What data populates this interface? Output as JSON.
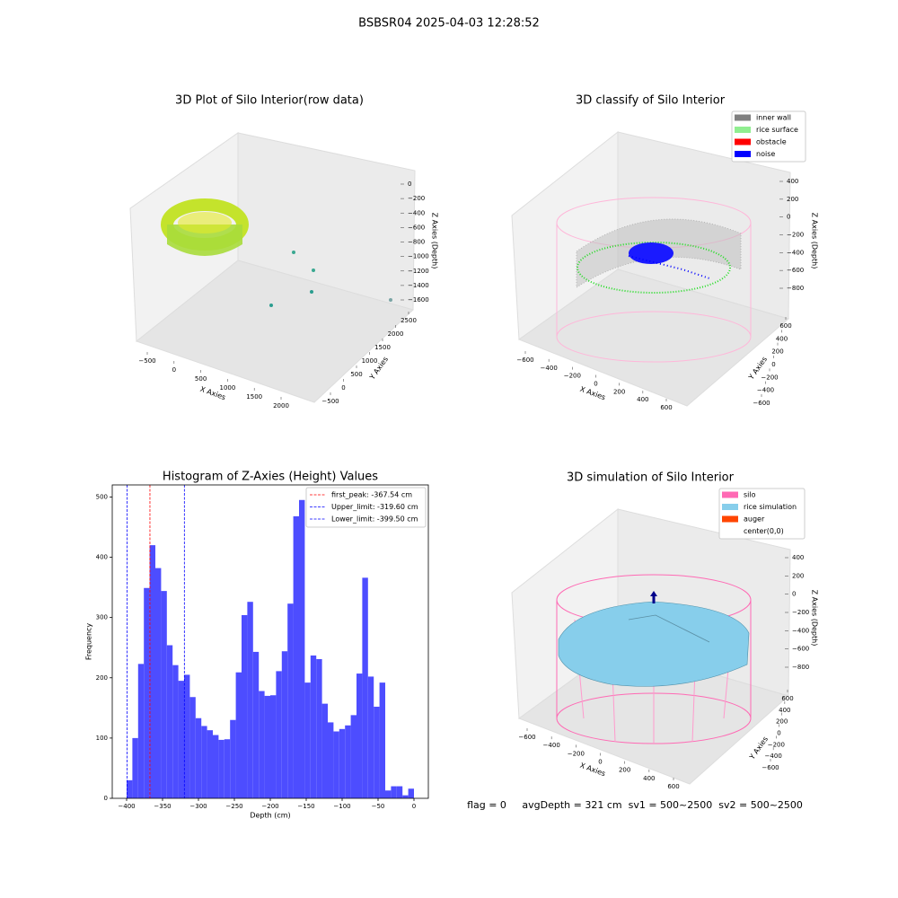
{
  "title": "BSBSR04 2025-04-03 12:28:52",
  "footer": "flag = 0     avgDepth = 321 cm  sv1 = 500~2500  sv2 = 500~2500",
  "chart_data": [
    {
      "type": "scatter3d",
      "title": "3D Plot of Silo Interior(row data)",
      "xlabel": "X Axies",
      "ylabel": "Y Axies",
      "zlabel": "Z Axies (Depth)",
      "xticks": [
        {
          "value": -500,
          "label": "−500"
        },
        0,
        500,
        1000,
        1500,
        2000
      ],
      "yticks": [
        {
          "value": -500,
          "label": "−500"
        },
        0,
        500,
        1000,
        1500,
        2000,
        2500
      ],
      "zticks": [
        0,
        {
          "value": -200,
          "label": "−200"
        },
        {
          "value": -400,
          "label": "−400"
        },
        {
          "value": -600,
          "label": "−600"
        },
        {
          "value": -800,
          "label": "−800"
        },
        {
          "value": -1000,
          "label": "−1000"
        },
        {
          "value": -1200,
          "label": "−1200"
        },
        {
          "value": -1400,
          "label": "−1400"
        },
        {
          "value": -1600,
          "label": "−1600"
        }
      ]
    },
    {
      "type": "scatter3d",
      "title": "3D classify of Silo Interior",
      "xlabel": "X Axies",
      "ylabel": "Y Axies",
      "zlabel": "Z Axies (Depth)",
      "xticks": [
        {
          "value": -600,
          "label": "−600"
        },
        {
          "value": -400,
          "label": "−400"
        },
        {
          "value": -200,
          "label": "−200"
        },
        0,
        200,
        400,
        600
      ],
      "yticks": [
        {
          "value": -600,
          "label": "−600"
        },
        {
          "value": -400,
          "label": "−400"
        },
        {
          "value": -200,
          "label": "−200"
        },
        0,
        200,
        400,
        600
      ],
      "zticks": [
        400,
        200,
        0,
        {
          "value": -200,
          "label": "−200"
        },
        {
          "value": -400,
          "label": "−400"
        },
        {
          "value": -600,
          "label": "−600"
        },
        {
          "value": -800,
          "label": "−800"
        }
      ],
      "legend": [
        {
          "name": "inner wall",
          "color": "#808080"
        },
        {
          "name": "rice surface",
          "color": "#90ee90"
        },
        {
          "name": "obstacle",
          "color": "#ff0000"
        },
        {
          "name": "noise",
          "color": "#0000ff"
        }
      ]
    },
    {
      "type": "histogram",
      "title": "Histogram of Z-Axies (Height) Values",
      "xlabel": "Depth (cm)",
      "ylabel": "Frequency",
      "color": "#4d4dff",
      "bins": [
        -400,
        -392,
        -384,
        -376,
        -368,
        -360,
        -352,
        -344,
        -336,
        -328,
        -320,
        -312,
        -304,
        -296,
        -288,
        -280,
        -272,
        -264,
        -256,
        -248,
        -240,
        -232,
        -224,
        -216,
        -208,
        -200,
        -192,
        -184,
        -176,
        -168,
        -160,
        -152,
        -144,
        -136,
        -128,
        -120,
        -112,
        -104,
        -96,
        -88,
        -80,
        -72,
        -64,
        -56,
        -48,
        -40,
        -32,
        -24,
        -16,
        -8,
        0
      ],
      "values": [
        30,
        100,
        223,
        349,
        420,
        382,
        344,
        254,
        221,
        195,
        205,
        168,
        133,
        120,
        113,
        105,
        97,
        98,
        130,
        209,
        304,
        326,
        243,
        178,
        170,
        171,
        211,
        244,
        323,
        468,
        495,
        192,
        237,
        231,
        157,
        126,
        111,
        115,
        121,
        138,
        207,
        366,
        202,
        152,
        192,
        13,
        20,
        20,
        5,
        16
      ],
      "xlim": [
        -420,
        20
      ],
      "ylim": [
        0,
        520
      ],
      "xticks": [
        {
          "value": -400,
          "label": "−400"
        },
        {
          "value": -350,
          "label": "−350"
        },
        {
          "value": -300,
          "label": "−300"
        },
        {
          "value": -250,
          "label": "−250"
        },
        {
          "value": -200,
          "label": "−200"
        },
        {
          "value": -150,
          "label": "−150"
        },
        {
          "value": -100,
          "label": "−100"
        },
        {
          "value": -50,
          "label": "−50"
        },
        0
      ],
      "yticks": [
        0,
        100,
        200,
        300,
        400,
        500
      ],
      "vlines": [
        {
          "name": "first_peak: -367.54 cm",
          "value": -367.54,
          "color": "#ff0000"
        },
        {
          "name": "Upper_limit: -319.60 cm",
          "value": -319.6,
          "color": "#0000ff"
        },
        {
          "name": "Lower_limit: -399.50 cm",
          "value": -399.5,
          "color": "#0000ff"
        }
      ],
      "legend_position": "upper right"
    },
    {
      "type": "surface3d",
      "title": "3D simulation of Silo Interior",
      "xlabel": "X Axies",
      "ylabel": "Y Axies",
      "zlabel": "Z Axies (Depth)",
      "xticks": [
        {
          "value": -600,
          "label": "−600"
        },
        {
          "value": -400,
          "label": "−400"
        },
        {
          "value": -200,
          "label": "−200"
        },
        0,
        200,
        400,
        600
      ],
      "yticks": [
        {
          "value": -600,
          "label": "−600"
        },
        {
          "value": -400,
          "label": "−400"
        },
        {
          "value": -200,
          "label": "−200"
        },
        0,
        200,
        400,
        600
      ],
      "zticks": [
        400,
        200,
        0,
        {
          "value": -200,
          "label": "−200"
        },
        {
          "value": -400,
          "label": "−400"
        },
        {
          "value": -600,
          "label": "−600"
        },
        {
          "value": -800,
          "label": "−800"
        }
      ],
      "legend": [
        {
          "name": "silo",
          "color": "#ff69b4"
        },
        {
          "name": "rice simulation",
          "color": "#87ceeb"
        },
        {
          "name": "auger",
          "color": "#ff4500"
        },
        {
          "name": "center(0,0)"
        }
      ]
    }
  ]
}
